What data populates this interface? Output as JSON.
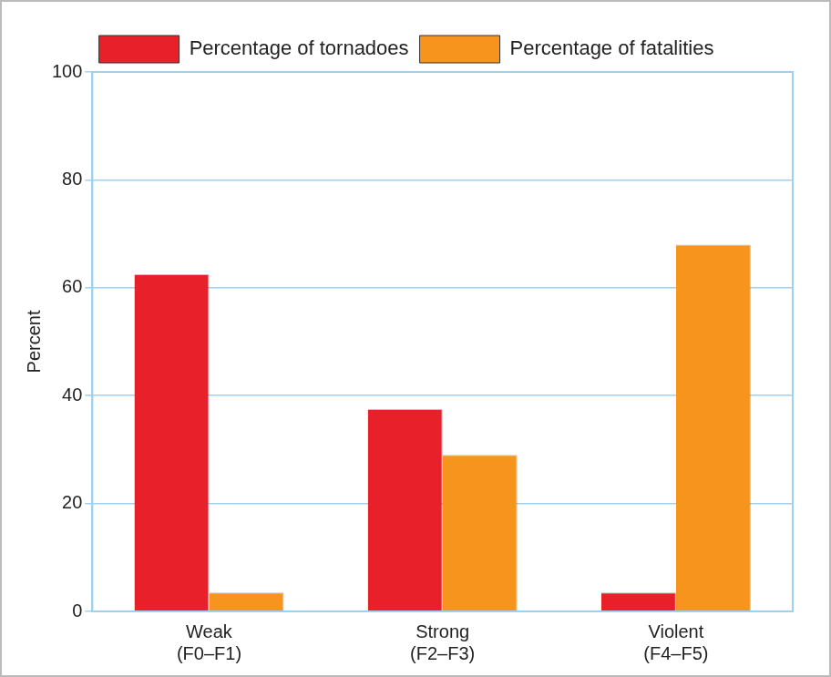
{
  "chart_data": {
    "type": "bar",
    "categories": [
      "Weak\n(F0–F1)",
      "Strong\n(F2–F3)",
      "Violent\n(F4–F5)"
    ],
    "series": [
      {
        "name": "Percentage of tornadoes",
        "color": "#e8202a",
        "values": [
          62.5,
          37.5,
          3.5
        ]
      },
      {
        "name": "Percentage of fatalities",
        "color": "#f7941d",
        "values": [
          3.5,
          29,
          68
        ]
      }
    ],
    "y_label": "Percent",
    "ylim": [
      0,
      100
    ],
    "yticks": [
      0,
      20,
      40,
      60,
      80,
      100
    ],
    "grid": true,
    "legend": "top"
  }
}
